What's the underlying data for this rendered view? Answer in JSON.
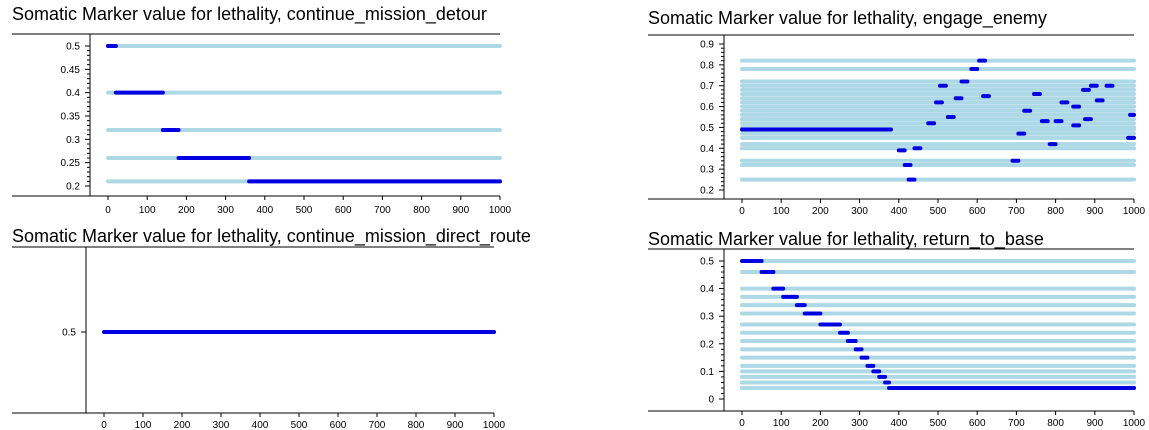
{
  "chart_data": [
    {
      "type": "line",
      "title": "Somatic Marker value for lethality, continue_mission_detour",
      "xlabel": "",
      "ylabel": "",
      "xlim": [
        0,
        1000
      ],
      "ylim": [
        0.2,
        0.5
      ],
      "x_ticks": [
        "0",
        "100",
        "200",
        "300",
        "400",
        "500",
        "600",
        "700",
        "800",
        "900",
        "1000"
      ],
      "y_ticks": [
        "0.5",
        "0.45",
        "0.4",
        "0.35",
        "0.3",
        "0.25",
        "0.2"
      ],
      "levels": [
        0.5,
        0.4,
        0.32,
        0.26,
        0.21
      ],
      "active_segments": [
        {
          "y": 0.5,
          "x": [
            0,
            20
          ]
        },
        {
          "y": 0.4,
          "x": [
            20,
            140
          ]
        },
        {
          "y": 0.32,
          "x": [
            140,
            180
          ]
        },
        {
          "y": 0.26,
          "x": [
            180,
            360
          ]
        },
        {
          "y": 0.21,
          "x": [
            360,
            1000
          ]
        }
      ],
      "colors": {
        "level": "#add8e6",
        "active": "#0000e0"
      }
    },
    {
      "type": "line",
      "title": "Somatic Marker value for lethality, engage_enemy",
      "xlabel": "",
      "ylabel": "",
      "xlim": [
        0,
        1000
      ],
      "ylim": [
        0.2,
        0.9
      ],
      "x_ticks": [
        "0",
        "100",
        "200",
        "300",
        "400",
        "500",
        "600",
        "700",
        "800",
        "900",
        "1000"
      ],
      "y_ticks": [
        "0.9",
        "0.8",
        "0.7",
        "0.6",
        "0.5",
        "0.4",
        "0.3",
        "0.2"
      ],
      "levels": [
        0.82,
        0.78,
        0.72,
        0.7,
        0.68,
        0.66,
        0.64,
        0.62,
        0.6,
        0.58,
        0.56,
        0.54,
        0.52,
        0.5,
        0.49,
        0.47,
        0.45,
        0.42,
        0.4,
        0.34,
        0.32,
        0.25
      ],
      "active_segments": [
        {
          "y": 0.49,
          "x": [
            0,
            380
          ]
        },
        {
          "y": 0.82,
          "x": [
            605,
            620
          ]
        },
        {
          "y": 0.78,
          "x": [
            585,
            600
          ]
        },
        {
          "y": 0.72,
          "x": [
            560,
            575
          ]
        },
        {
          "y": 0.7,
          "x": [
            505,
            520
          ]
        },
        {
          "y": 0.7,
          "x": [
            890,
            905
          ]
        },
        {
          "y": 0.7,
          "x": [
            930,
            945
          ]
        },
        {
          "y": 0.68,
          "x": [
            870,
            885
          ]
        },
        {
          "y": 0.66,
          "x": [
            745,
            760
          ]
        },
        {
          "y": 0.65,
          "x": [
            615,
            630
          ]
        },
        {
          "y": 0.64,
          "x": [
            545,
            560
          ]
        },
        {
          "y": 0.63,
          "x": [
            905,
            920
          ]
        },
        {
          "y": 0.62,
          "x": [
            495,
            510
          ]
        },
        {
          "y": 0.62,
          "x": [
            815,
            830
          ]
        },
        {
          "y": 0.6,
          "x": [
            845,
            860
          ]
        },
        {
          "y": 0.58,
          "x": [
            720,
            735
          ]
        },
        {
          "y": 0.56,
          "x": [
            990,
            1000
          ]
        },
        {
          "y": 0.55,
          "x": [
            525,
            540
          ]
        },
        {
          "y": 0.54,
          "x": [
            875,
            890
          ]
        },
        {
          "y": 0.53,
          "x": [
            765,
            780
          ]
        },
        {
          "y": 0.53,
          "x": [
            800,
            815
          ]
        },
        {
          "y": 0.52,
          "x": [
            475,
            490
          ]
        },
        {
          "y": 0.51,
          "x": [
            845,
            860
          ]
        },
        {
          "y": 0.47,
          "x": [
            705,
            720
          ]
        },
        {
          "y": 0.45,
          "x": [
            985,
            1000
          ]
        },
        {
          "y": 0.42,
          "x": [
            785,
            800
          ]
        },
        {
          "y": 0.4,
          "x": [
            440,
            455
          ]
        },
        {
          "y": 0.39,
          "x": [
            400,
            415
          ]
        },
        {
          "y": 0.34,
          "x": [
            690,
            705
          ]
        },
        {
          "y": 0.32,
          "x": [
            415,
            430
          ]
        },
        {
          "y": 0.25,
          "x": [
            425,
            440
          ]
        }
      ],
      "colors": {
        "level": "#add8e6",
        "active": "#0000e0"
      }
    },
    {
      "type": "line",
      "title": "Somatic Marker value for lethality, continue_mission_direct_route",
      "xlabel": "",
      "ylabel": "",
      "xlim": [
        0,
        1000
      ],
      "ylim": [
        0.4,
        0.6
      ],
      "x_ticks": [
        "0",
        "100",
        "200",
        "300",
        "400",
        "500",
        "600",
        "700",
        "800",
        "900",
        "1000"
      ],
      "y_ticks": [
        "0.5"
      ],
      "levels": [
        0.5
      ],
      "active_segments": [
        {
          "y": 0.5,
          "x": [
            0,
            1000
          ]
        }
      ],
      "colors": {
        "level": "#add8e6",
        "active": "#0000e0"
      }
    },
    {
      "type": "line",
      "title": "Somatic Marker value for lethality, return_to_base",
      "xlabel": "",
      "ylabel": "",
      "xlim": [
        0,
        1000
      ],
      "ylim": [
        0,
        0.5
      ],
      "x_ticks": [
        "0",
        "100",
        "200",
        "300",
        "400",
        "500",
        "600",
        "700",
        "800",
        "900",
        "1000"
      ],
      "y_ticks": [
        "0.5",
        "0.4",
        "0.3",
        "0.2",
        "0.1",
        "0"
      ],
      "levels": [
        0.5,
        0.46,
        0.4,
        0.37,
        0.34,
        0.31,
        0.27,
        0.24,
        0.21,
        0.18,
        0.15,
        0.12,
        0.1,
        0.08,
        0.06,
        0.04
      ],
      "active_segments": [
        {
          "y": 0.5,
          "x": [
            0,
            50
          ]
        },
        {
          "y": 0.46,
          "x": [
            50,
            80
          ]
        },
        {
          "y": 0.4,
          "x": [
            80,
            105
          ]
        },
        {
          "y": 0.37,
          "x": [
            105,
            140
          ]
        },
        {
          "y": 0.34,
          "x": [
            140,
            160
          ]
        },
        {
          "y": 0.31,
          "x": [
            160,
            200
          ]
        },
        {
          "y": 0.27,
          "x": [
            200,
            250
          ]
        },
        {
          "y": 0.24,
          "x": [
            250,
            270
          ]
        },
        {
          "y": 0.21,
          "x": [
            270,
            290
          ]
        },
        {
          "y": 0.18,
          "x": [
            290,
            305
          ]
        },
        {
          "y": 0.15,
          "x": [
            305,
            320
          ]
        },
        {
          "y": 0.12,
          "x": [
            320,
            335
          ]
        },
        {
          "y": 0.1,
          "x": [
            335,
            350
          ]
        },
        {
          "y": 0.08,
          "x": [
            350,
            365
          ]
        },
        {
          "y": 0.06,
          "x": [
            365,
            375
          ]
        },
        {
          "y": 0.04,
          "x": [
            375,
            1000
          ]
        }
      ],
      "colors": {
        "level": "#add8e6",
        "active": "#0000e0"
      }
    }
  ]
}
